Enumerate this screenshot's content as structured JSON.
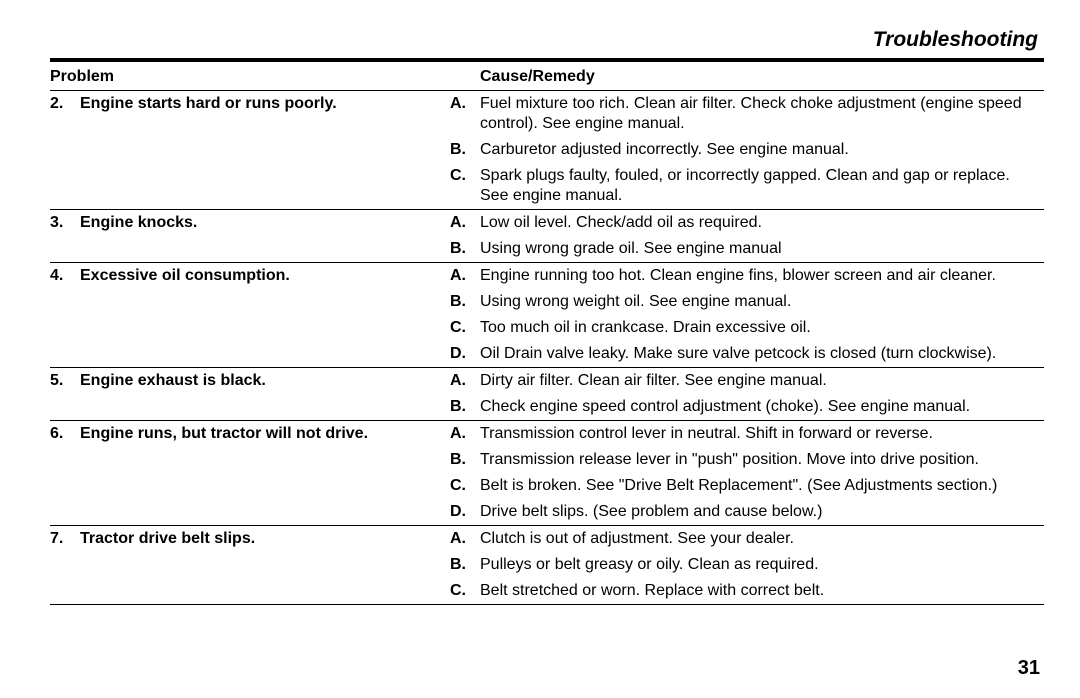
{
  "page": {
    "section_title": "Troubleshooting",
    "header_problem": "Problem",
    "header_cause": "Cause/Remedy",
    "page_number": "31"
  },
  "problems": [
    {
      "num": "2.",
      "text": "Engine starts hard or runs poorly.",
      "causes": [
        {
          "letter": "A.",
          "text": "Fuel mixture too rich. Clean air filter. Check choke adjustment (engine speed control). See engine manual."
        },
        {
          "letter": "B.",
          "text": "Carburetor adjusted incorrectly. See engine manual."
        },
        {
          "letter": "C.",
          "text": "Spark plugs faulty, fouled, or incorrectly gapped. Clean and gap or replace. See engine manual."
        }
      ]
    },
    {
      "num": "3.",
      "text": "Engine knocks.",
      "causes": [
        {
          "letter": "A.",
          "text": "Low oil level. Check/add oil as required."
        },
        {
          "letter": "B.",
          "text": "Using wrong grade oil. See engine manual"
        }
      ]
    },
    {
      "num": "4.",
      "text": "Excessive oil consumption.",
      "causes": [
        {
          "letter": "A.",
          "text": "Engine running too hot. Clean engine fins, blower screen and air cleaner."
        },
        {
          "letter": "B.",
          "text": "Using wrong weight oil. See engine manual."
        },
        {
          "letter": "C.",
          "text": "Too much oil in crankcase. Drain excessive oil."
        },
        {
          "letter": "D.",
          "text": "Oil Drain valve leaky. Make sure valve petcock is closed (turn clockwise)."
        }
      ]
    },
    {
      "num": "5.",
      "text": "Engine exhaust is black.",
      "causes": [
        {
          "letter": "A.",
          "text": "Dirty air filter. Clean air filter. See engine manual."
        },
        {
          "letter": "B.",
          "text": "Check engine speed control adjustment (choke). See engine manual."
        }
      ]
    },
    {
      "num": "6.",
      "text": "Engine runs, but tractor will not drive.",
      "causes": [
        {
          "letter": "A.",
          "text": "Transmission control lever in neutral. Shift in forward or reverse."
        },
        {
          "letter": "B.",
          "text": "Transmission release lever in \"push\" position. Move into drive position."
        },
        {
          "letter": "C.",
          "text": "Belt is broken. See \"Drive Belt Replacement\". (See Adjustments section.)"
        },
        {
          "letter": "D.",
          "text": "Drive belt slips. (See problem and cause below.)"
        }
      ]
    },
    {
      "num": "7.",
      "text": "Tractor drive belt slips.",
      "causes": [
        {
          "letter": "A.",
          "text": "Clutch is out of adjustment. See your dealer."
        },
        {
          "letter": "B.",
          "text": "Pulleys or belt greasy or oily. Clean as required."
        },
        {
          "letter": "C.",
          "text": "Belt stretched or worn. Replace with correct belt."
        }
      ]
    }
  ]
}
